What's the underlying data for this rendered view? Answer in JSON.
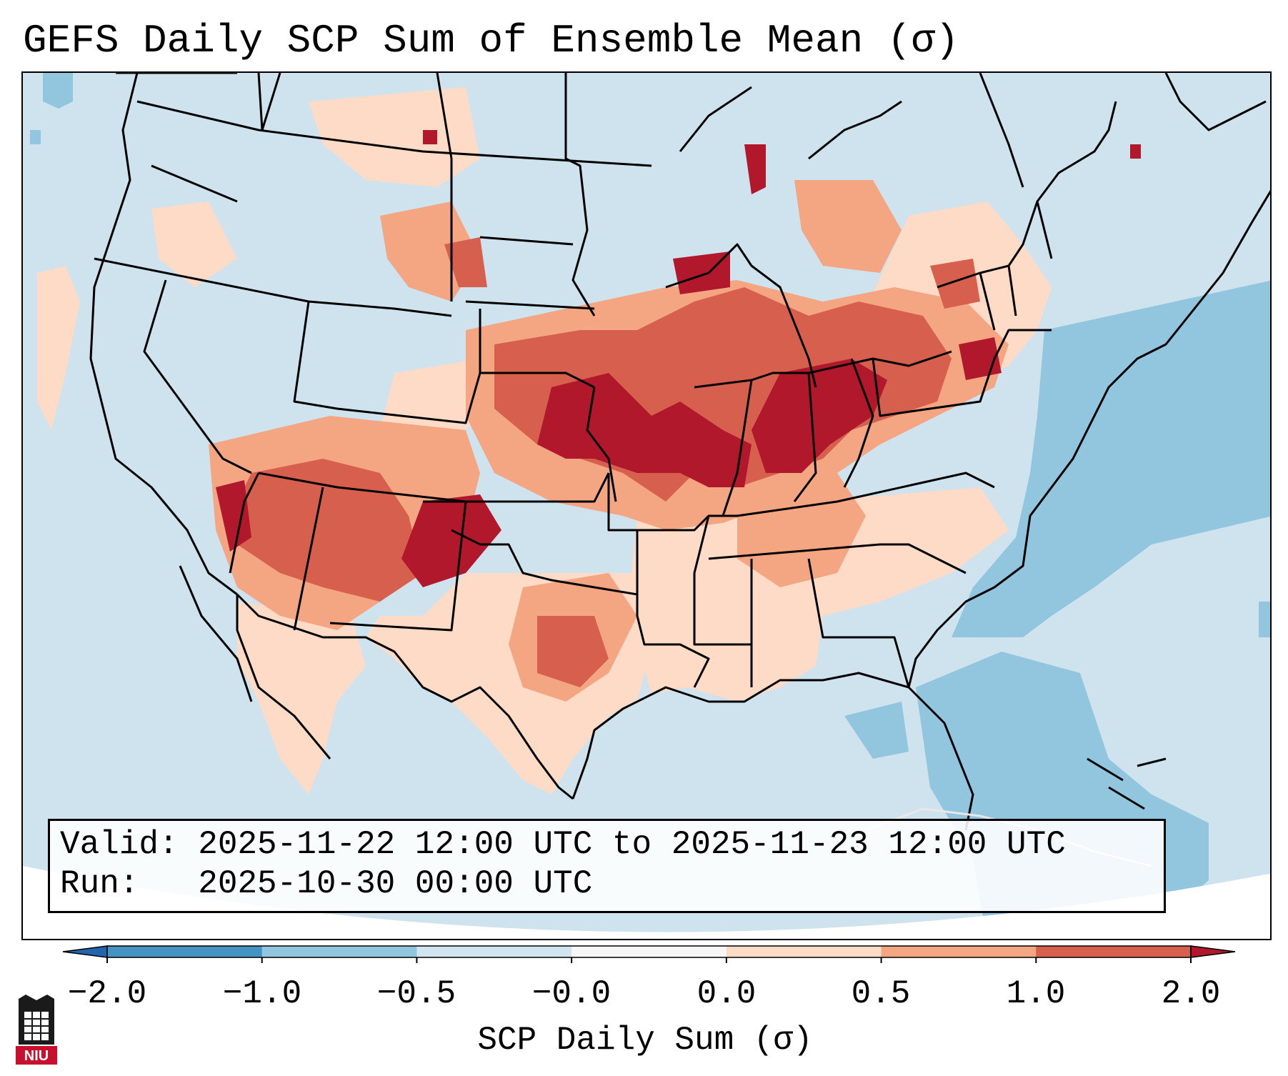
{
  "title": "GEFS Daily SCP Sum of Ensemble Mean (σ)",
  "info": {
    "valid_line": "Valid: 2025-11-22 12:00 UTC to 2025-11-23 12:00 UTC",
    "run_line": "Run:   2025-10-30 00:00 UTC"
  },
  "colorbar": {
    "label": "SCP Daily Sum (σ)",
    "ticks": [
      "−2.0",
      "−1.0",
      "−0.5",
      "−0.0",
      "0.0",
      "0.5",
      "1.0",
      "2.0"
    ],
    "bins": [
      {
        "range": "< -2.0",
        "color": "#2166ac"
      },
      {
        "range": "-2.0 to -1.0",
        "color": "#4393c3"
      },
      {
        "range": "-1.0 to -0.5",
        "color": "#92c5de"
      },
      {
        "range": "-0.5 to -0.0",
        "color": "#d1e5f0"
      },
      {
        "range": "-0.0 to 0.0",
        "color": "#f7f7f7"
      },
      {
        "range": "0.0 to 0.5",
        "color": "#fddbc7"
      },
      {
        "range": "0.5 to 1.0",
        "color": "#f4a582"
      },
      {
        "range": "1.0 to 2.0",
        "color": "#d6604d"
      },
      {
        "range": "> 2.0",
        "color": "#b2182b"
      }
    ]
  },
  "logo": {
    "text": "NIU"
  },
  "map": {
    "region": "Contiguous United States",
    "background_color": "#cfe3ef",
    "ocean_anomaly_color": "#92c5de",
    "max_anomaly_color": "#b2182b"
  }
}
